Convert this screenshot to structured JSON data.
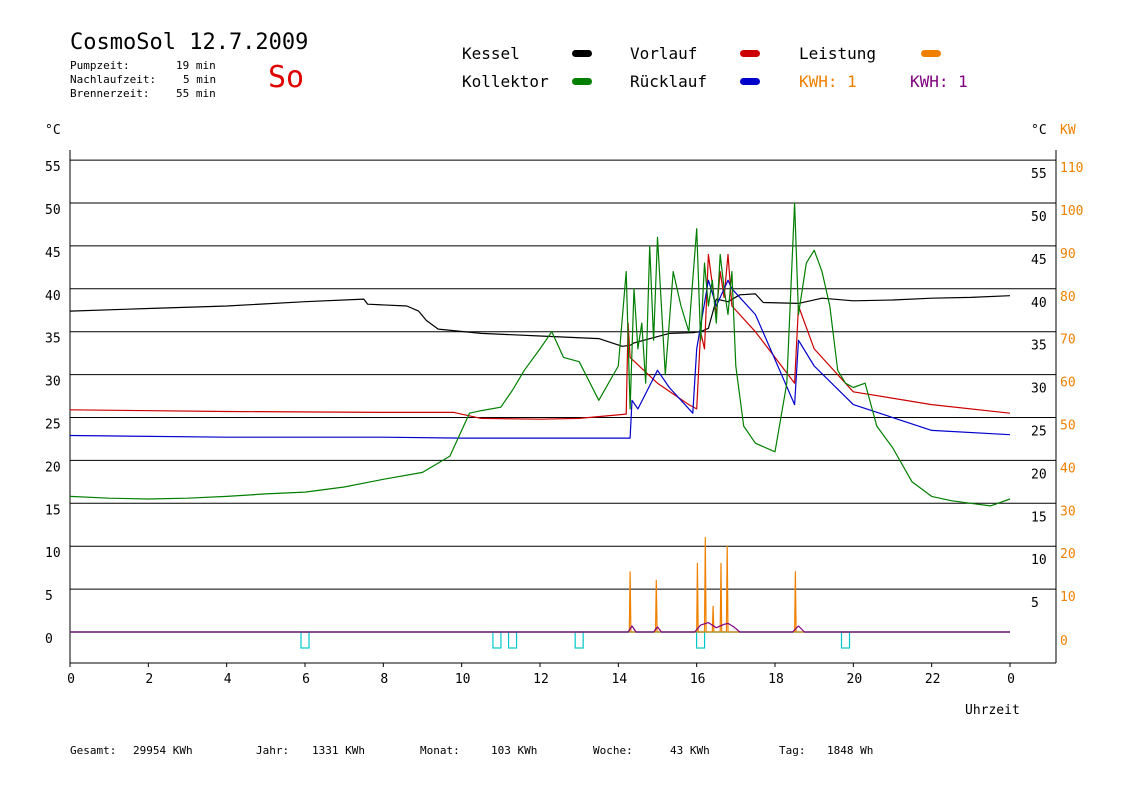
{
  "header": {
    "title": "CosmoSol 12.7.2009",
    "pump_label": "Pumpzeit:",
    "pump_value": "19 min",
    "nach_label": "Nachlaufzeit:",
    "nach_value": "5 min",
    "brenner_label": "Brennerzeit:",
    "brenner_value": "55 min",
    "day": "So"
  },
  "legend": {
    "kessel": "Kessel",
    "kollektor": "Kollektor",
    "vorlauf": "Vorlauf",
    "ruecklauf": "Rücklauf",
    "leistung": "Leistung",
    "kwh1": "KWH: 1",
    "kwh2": "KWH: 1"
  },
  "colors": {
    "kessel": "#000000",
    "kollektor": "#007f00",
    "vorlauf": "#cc0000",
    "ruecklauf": "#0000cc",
    "leistung": "#f08000",
    "kwh": "#800080",
    "pump": "#00c8c8"
  },
  "footer": {
    "gesamt_label": "Gesamt:",
    "gesamt_value": "29954 KWh",
    "jahr_label": "Jahr:",
    "jahr_value": "1331 KWh",
    "monat_label": "Monat:",
    "monat_value": "103 KWh",
    "woche_label": "Woche:",
    "woche_value": "43 KWh",
    "tag_label": "Tag:",
    "tag_value": "1848 Wh"
  },
  "chart_data": {
    "type": "line",
    "ylabel_left": "°C",
    "ylabel_right": "°C",
    "ylabel_right2": "KW",
    "xlabel": "Uhrzeit",
    "xlim": [
      0,
      24
    ],
    "ylim": [
      -3.5,
      55
    ],
    "ylim_kw": [
      -7,
      110
    ],
    "grid": true,
    "x_ticks": [
      "0",
      "2",
      "4",
      "6",
      "8",
      "10",
      "12",
      "14",
      "16",
      "18",
      "20",
      "22",
      "0"
    ],
    "y_ticks": [
      "0",
      "5",
      "10",
      "15",
      "20",
      "25",
      "30",
      "35",
      "40",
      "45",
      "50",
      "55"
    ],
    "kw_ticks": [
      "0",
      "10",
      "20",
      "30",
      "40",
      "50",
      "60",
      "70",
      "80",
      "90",
      "100",
      "110"
    ],
    "series": [
      {
        "name": "Kessel",
        "x": [
          0,
          2,
          4,
          6,
          7.5,
          7.6,
          8.6,
          8.9,
          9.1,
          9.4,
          10.5,
          12,
          13.5,
          14.1,
          14.3,
          14.4,
          15.3,
          15.9,
          16.1,
          16.3,
          16.5,
          16.8,
          17.1,
          17.5,
          17.7,
          18.6,
          19.2,
          20,
          21,
          22,
          23,
          24
        ],
        "y": [
          37.4,
          37.7,
          38,
          38.5,
          38.8,
          38.2,
          38,
          37.4,
          36.3,
          35.3,
          34.8,
          34.5,
          34.2,
          33.3,
          33.4,
          33.7,
          34.8,
          34.9,
          35,
          35.4,
          38.8,
          38.5,
          39.3,
          39.4,
          38.4,
          38.3,
          38.9,
          38.6,
          38.7,
          38.9,
          39,
          39.2
        ]
      },
      {
        "name": "Kollektor",
        "x": [
          0,
          1,
          2,
          3,
          4,
          5,
          6,
          7,
          8,
          9,
          9.7,
          10.2,
          10.5,
          11,
          11.3,
          11.6,
          12,
          12.3,
          12.6,
          13,
          13.5,
          14,
          14.2,
          14.3,
          14.4,
          14.5,
          14.6,
          14.7,
          14.8,
          14.9,
          15,
          15.2,
          15.4,
          15.6,
          15.8,
          16,
          16.1,
          16.2,
          16.3,
          16.4,
          16.5,
          16.6,
          16.7,
          16.8,
          16.9,
          17,
          17.2,
          17.5,
          18,
          18.3,
          18.5,
          18.6,
          18.8,
          19,
          19.2,
          19.4,
          19.6,
          19.8,
          20,
          20.3,
          20.6,
          21,
          21.5,
          22,
          22.5,
          23,
          23.5,
          24
        ],
        "y": [
          15.8,
          15.6,
          15.5,
          15.6,
          15.8,
          16.1,
          16.3,
          16.9,
          17.8,
          18.6,
          20.5,
          25.5,
          25.8,
          26.2,
          28.2,
          30.5,
          33,
          35,
          32,
          31.5,
          27,
          31,
          42,
          26,
          40,
          33,
          36,
          29,
          45,
          34,
          46,
          30,
          42,
          38,
          35,
          47,
          34,
          43,
          38,
          41,
          36,
          44,
          40,
          37,
          42,
          31,
          24,
          22,
          21,
          29,
          50,
          37,
          43,
          44.5,
          42,
          38,
          30.5,
          29,
          28.5,
          29,
          24,
          21.5,
          17.5,
          15.8,
          15.3,
          15,
          14.7,
          15.5
        ]
      },
      {
        "name": "Vorlauf",
        "x": [
          0,
          4,
          8,
          9.8,
          10.5,
          12,
          13,
          14.2,
          14.25,
          14.3,
          15,
          15.8,
          16,
          16.1,
          16.2,
          16.3,
          16.5,
          16.6,
          16.7,
          16.8,
          16.9,
          17.5,
          18.5,
          18.6,
          19,
          20,
          22,
          24
        ],
        "y": [
          25.9,
          25.7,
          25.6,
          25.6,
          24.9,
          24.8,
          24.9,
          25.4,
          36,
          32,
          29,
          26.5,
          26,
          35,
          33,
          44,
          37,
          42,
          39,
          44,
          38,
          35,
          29,
          38,
          33,
          28,
          26.5,
          25.5
        ]
      },
      {
        "name": "Rücklauf",
        "x": [
          0,
          4,
          8,
          10,
          12,
          14.3,
          14.35,
          14.5,
          15,
          15.3,
          15.9,
          16,
          16.3,
          16.5,
          16.8,
          16.9,
          17.5,
          18.5,
          18.6,
          19,
          20,
          22,
          24
        ],
        "y": [
          22.9,
          22.7,
          22.7,
          22.6,
          22.6,
          22.6,
          27,
          26,
          30.5,
          28.5,
          25.5,
          33,
          41,
          38,
          41,
          40,
          37,
          26.5,
          34,
          31,
          26.5,
          23.5,
          23
        ]
      },
      {
        "name": "Leistung",
        "x": [
          0,
          14.28,
          14.3,
          14.32,
          14.95,
          14.97,
          14.99,
          16.0,
          16.02,
          16.04,
          16.2,
          16.22,
          16.24,
          16.4,
          16.42,
          16.44,
          16.6,
          16.62,
          16.64,
          16.76,
          16.78,
          16.8,
          18.5,
          18.52,
          18.54,
          24
        ],
        "y": [
          0,
          0,
          7,
          0,
          0,
          6,
          0,
          0,
          8,
          0,
          0,
          11,
          0,
          0,
          3,
          0,
          0,
          8,
          0,
          0,
          10,
          0,
          0,
          7,
          0,
          0
        ]
      },
      {
        "name": "KWH",
        "x": [
          0,
          14.25,
          14.35,
          14.45,
          14.9,
          15.0,
          15.1,
          15.95,
          16.1,
          16.3,
          16.5,
          16.7,
          16.8,
          16.95,
          17.1,
          18.45,
          18.6,
          18.75,
          24
        ],
        "y": [
          0,
          0,
          0.7,
          0,
          0,
          0.6,
          0,
          0,
          0.8,
          1.1,
          0.5,
          0.9,
          1.0,
          0.6,
          0,
          0,
          0.7,
          0,
          0
        ]
      }
    ],
    "pump_markers": [
      6.0,
      10.9,
      11.3,
      13.0,
      16.1,
      19.8
    ]
  }
}
